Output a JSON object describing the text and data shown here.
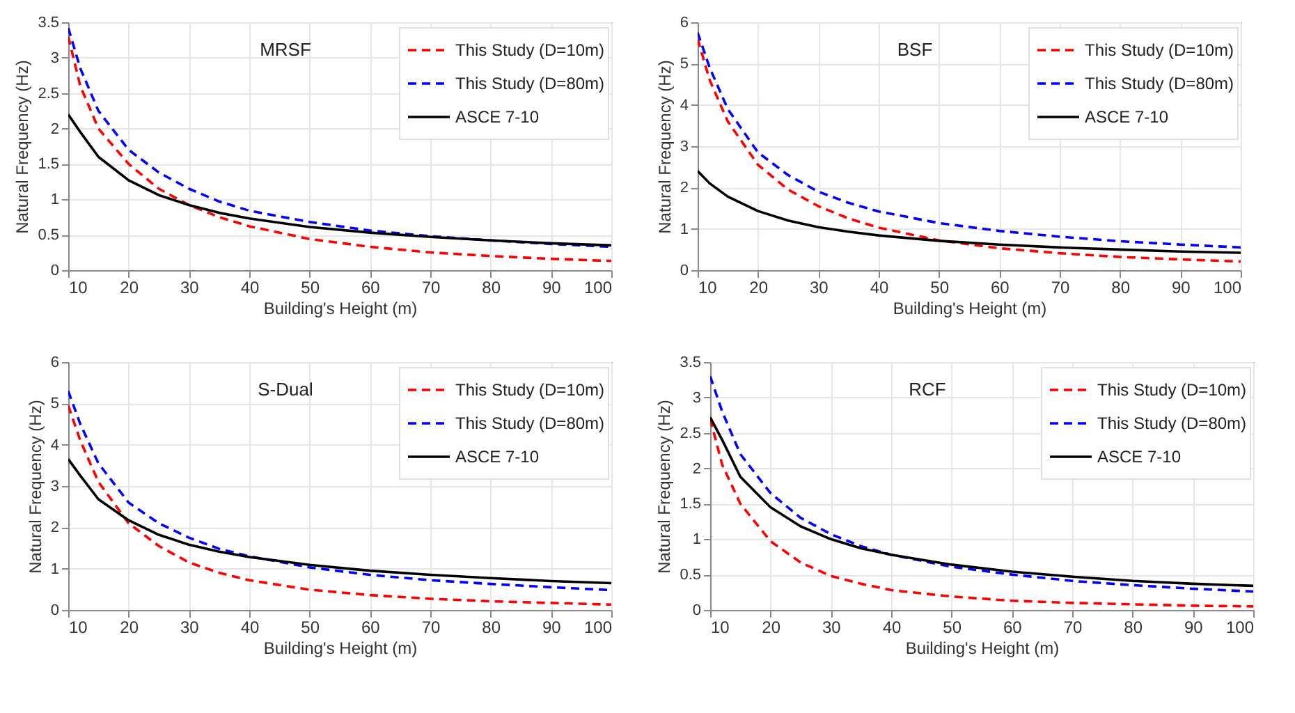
{
  "chart_data": [
    {
      "type": "line",
      "title": "MRSF",
      "xlabel": "Building's Height (m)",
      "ylabel": "Natural Frequency (Hz)",
      "x": [
        10,
        12,
        15,
        20,
        25,
        30,
        35,
        40,
        50,
        60,
        70,
        80,
        90,
        100
      ],
      "xlim": [
        10,
        100
      ],
      "xticks": [
        10,
        20,
        30,
        40,
        50,
        60,
        70,
        80,
        90,
        100
      ],
      "ylim": [
        0,
        3.5
      ],
      "yticks": [
        0,
        0.5,
        1,
        1.5,
        2,
        2.5,
        3,
        3.5
      ],
      "grid": true,
      "legend": "top right",
      "marker": "none",
      "series": [
        {
          "name": "This Study (D=10m)",
          "color": "#ff0000",
          "line_style": "dashed",
          "values": [
            3.3,
            2.6,
            2.0,
            1.5,
            1.15,
            0.92,
            0.75,
            0.62,
            0.44,
            0.33,
            0.25,
            0.2,
            0.16,
            0.13
          ]
        },
        {
          "name": "This Study (D=80m)",
          "color": "#0000ff",
          "line_style": "dashed",
          "values": [
            3.42,
            2.85,
            2.25,
            1.7,
            1.38,
            1.15,
            0.97,
            0.84,
            0.68,
            0.56,
            0.48,
            0.42,
            0.37,
            0.33
          ]
        },
        {
          "name": "ASCE 7-10",
          "color": "#000000",
          "line_style": "solid",
          "values": [
            2.2,
            1.95,
            1.6,
            1.27,
            1.06,
            0.92,
            0.81,
            0.73,
            0.61,
            0.53,
            0.47,
            0.42,
            0.38,
            0.35
          ]
        }
      ]
    },
    {
      "type": "line",
      "title": "BSF",
      "xlabel": "Building's Height (m)",
      "ylabel": "Natural Frequency (Hz)",
      "x": [
        10,
        12,
        15,
        20,
        25,
        30,
        35,
        40,
        50,
        60,
        70,
        80,
        90,
        100
      ],
      "xlim": [
        10,
        100
      ],
      "xticks": [
        10,
        20,
        30,
        40,
        50,
        60,
        70,
        80,
        90,
        100
      ],
      "ylim": [
        0,
        6
      ],
      "yticks": [
        0,
        1,
        2,
        3,
        4,
        5,
        6
      ],
      "grid": true,
      "legend": "top right",
      "marker": "none",
      "series": [
        {
          "name": "This Study (D=10m)",
          "color": "#ff0000",
          "line_style": "dashed",
          "values": [
            5.6,
            4.6,
            3.6,
            2.55,
            1.95,
            1.55,
            1.25,
            1.03,
            0.72,
            0.53,
            0.41,
            0.32,
            0.26,
            0.21
          ]
        },
        {
          "name": "This Study (D=80m)",
          "color": "#0000ff",
          "line_style": "dashed",
          "values": [
            5.75,
            4.9,
            3.9,
            2.85,
            2.3,
            1.9,
            1.63,
            1.42,
            1.14,
            0.95,
            0.81,
            0.7,
            0.62,
            0.55
          ]
        },
        {
          "name": "ASCE 7-10",
          "color": "#000000",
          "line_style": "solid",
          "values": [
            2.4,
            2.1,
            1.78,
            1.43,
            1.2,
            1.04,
            0.93,
            0.84,
            0.71,
            0.62,
            0.55,
            0.5,
            0.45,
            0.42
          ]
        }
      ]
    },
    {
      "type": "line",
      "title": "S-Dual",
      "xlabel": "Building's Height (m)",
      "ylabel": "Natural Frequency (Hz)",
      "x": [
        10,
        12,
        15,
        20,
        25,
        30,
        35,
        40,
        50,
        60,
        70,
        80,
        90,
        100
      ],
      "xlim": [
        10,
        100
      ],
      "xticks": [
        10,
        20,
        30,
        40,
        50,
        60,
        70,
        80,
        90,
        100
      ],
      "ylim": [
        0,
        6
      ],
      "yticks": [
        0,
        1,
        2,
        3,
        4,
        5,
        6
      ],
      "grid": true,
      "legend": "top right",
      "marker": "none",
      "series": [
        {
          "name": "This Study (D=10m)",
          "color": "#ff0000",
          "line_style": "dashed",
          "values": [
            4.95,
            4.1,
            3.1,
            2.1,
            1.55,
            1.15,
            0.9,
            0.72,
            0.49,
            0.36,
            0.27,
            0.21,
            0.17,
            0.13
          ]
        },
        {
          "name": "This Study (D=80m)",
          "color": "#0000ff",
          "line_style": "dashed",
          "values": [
            5.3,
            4.5,
            3.55,
            2.6,
            2.1,
            1.75,
            1.48,
            1.3,
            1.03,
            0.85,
            0.72,
            0.63,
            0.55,
            0.48
          ]
        },
        {
          "name": "ASCE 7-10",
          "color": "#000000",
          "line_style": "solid",
          "values": [
            3.65,
            3.25,
            2.68,
            2.17,
            1.82,
            1.58,
            1.41,
            1.28,
            1.09,
            0.95,
            0.85,
            0.77,
            0.7,
            0.65
          ]
        }
      ]
    },
    {
      "type": "line",
      "title": "RCF",
      "xlabel": "Building's Height (m)",
      "ylabel": "Natural Frequency (Hz)",
      "x": [
        10,
        12,
        15,
        20,
        25,
        30,
        35,
        40,
        50,
        60,
        70,
        80,
        90,
        100
      ],
      "xlim": [
        10,
        100
      ],
      "xticks": [
        10,
        20,
        30,
        40,
        50,
        60,
        70,
        80,
        90,
        100
      ],
      "ylim": [
        0,
        3.5
      ],
      "yticks": [
        0,
        0.5,
        1,
        1.5,
        2,
        2.5,
        3,
        3.5
      ],
      "grid": true,
      "legend": "top right",
      "marker": "none",
      "series": [
        {
          "name": "This Study (D=10m)",
          "color": "#ff0000",
          "line_style": "dashed",
          "values": [
            2.7,
            2.05,
            1.5,
            0.97,
            0.67,
            0.48,
            0.37,
            0.28,
            0.19,
            0.13,
            0.1,
            0.08,
            0.06,
            0.05
          ]
        },
        {
          "name": "This Study (D=80m)",
          "color": "#0000ff",
          "line_style": "dashed",
          "values": [
            3.3,
            2.8,
            2.2,
            1.65,
            1.3,
            1.07,
            0.9,
            0.78,
            0.61,
            0.5,
            0.41,
            0.35,
            0.3,
            0.26
          ]
        },
        {
          "name": "ASCE 7-10",
          "color": "#000000",
          "line_style": "solid",
          "values": [
            2.72,
            2.4,
            1.88,
            1.45,
            1.18,
            1.0,
            0.87,
            0.78,
            0.64,
            0.54,
            0.47,
            0.41,
            0.37,
            0.34
          ]
        }
      ]
    }
  ]
}
